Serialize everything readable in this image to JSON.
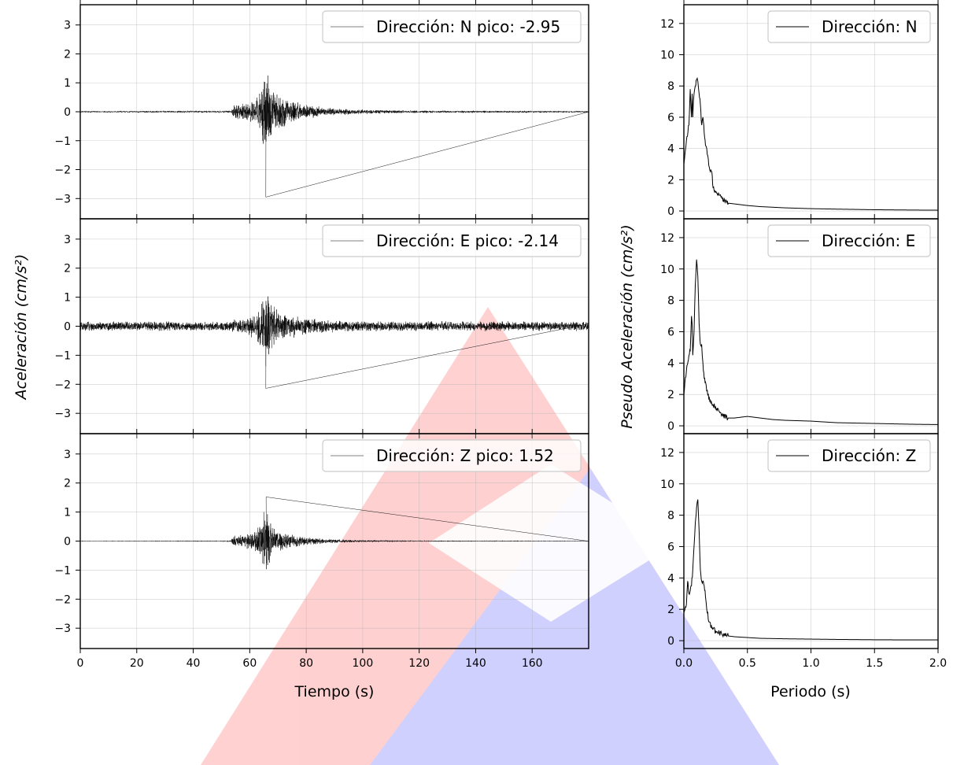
{
  "chart_data": [
    {
      "type": "line",
      "panel": "N",
      "xlabel": "Tiempo (s)",
      "ylabel": "Aceleración (cm/s²)",
      "xlim": [
        0,
        180
      ],
      "ylim": [
        -3.7,
        3.7
      ],
      "x_ticks": [
        0,
        20,
        40,
        60,
        80,
        100,
        120,
        140,
        160
      ],
      "y_ticks": [
        -3,
        -2,
        -1,
        0,
        1,
        2,
        3
      ],
      "grid": true,
      "legend_position": "top-right",
      "series": [
        {
          "name": "Dirección: N pico: -2.95",
          "envelope": {
            "t": [
              0,
              50,
              53.5,
              54,
              58,
              62,
              64,
              65,
              65.5,
              66,
              66.5,
              67,
              68,
              70,
              73,
              78,
              85,
              95,
              110,
              130,
              150,
              180
            ],
            "amp": [
              0.03,
              0.04,
              0.05,
              0.25,
              0.3,
              0.45,
              0.9,
              1.3,
              2.3,
              1.6,
              1.5,
              1.2,
              0.9,
              0.7,
              0.5,
              0.3,
              0.18,
              0.1,
              0.06,
              0.04,
              0.04,
              0.03
            ]
          },
          "peak": {
            "t": 65.7,
            "value": -2.95
          }
        }
      ]
    },
    {
      "type": "line",
      "panel": "E",
      "xlim": [
        0,
        180
      ],
      "ylim": [
        -3.7,
        3.7
      ],
      "y_ticks": [
        -3,
        -2,
        -1,
        0,
        1,
        2,
        3
      ],
      "grid": true,
      "legend_position": "top-right",
      "series": [
        {
          "name": "Dirección: E pico: -2.14",
          "envelope": {
            "t": [
              0,
              50,
              53.5,
              54,
              58,
              62,
              64,
              65,
              65.5,
              66,
              66.5,
              67,
              68,
              70,
              73,
              78,
              85,
              95,
              110,
              130,
              150,
              180
            ],
            "amp": [
              0.17,
              0.18,
              0.18,
              0.25,
              0.3,
              0.45,
              0.9,
              1.3,
              1.75,
              1.5,
              1.3,
              1.0,
              0.8,
              0.6,
              0.45,
              0.35,
              0.25,
              0.2,
              0.18,
              0.18,
              0.18,
              0.17
            ]
          },
          "peak": {
            "t": 65.7,
            "value": -2.14
          }
        }
      ]
    },
    {
      "type": "line",
      "panel": "Z",
      "xlim": [
        0,
        180
      ],
      "ylim": [
        -3.7,
        3.7
      ],
      "y_ticks": [
        -3,
        -2,
        -1,
        0,
        1,
        2,
        3
      ],
      "grid": true,
      "legend_position": "top-right",
      "series": [
        {
          "name": "Dirección: Z pico: 1.52",
          "envelope": {
            "t": [
              0,
              50,
              53.5,
              54,
              58,
              62,
              64,
              65,
              65.5,
              66,
              66.5,
              67,
              68,
              70,
              73,
              78,
              85,
              95,
              110,
              130,
              150,
              180
            ],
            "amp": [
              0.01,
              0.02,
              0.04,
              0.2,
              0.25,
              0.4,
              0.7,
              1.2,
              1.52,
              1.3,
              1.1,
              0.9,
              0.6,
              0.4,
              0.3,
              0.18,
              0.1,
              0.05,
              0.03,
              0.02,
              0.02,
              0.01
            ]
          },
          "peak": {
            "t": 65.8,
            "value": 1.52
          }
        }
      ]
    },
    {
      "type": "line",
      "panel": "N spectrum",
      "xlabel": "Periodo (s)",
      "ylabel": "Pseudo Aceleración (cm/s²)",
      "xlim": [
        0,
        2
      ],
      "ylim": [
        -0.5,
        13.2
      ],
      "x_ticks": [
        0.0,
        0.5,
        1.0,
        1.5,
        2.0
      ],
      "x_tick_labels": [
        "0.0",
        "0.5",
        "1.0",
        "1.5",
        "2.0"
      ],
      "y_ticks": [
        0,
        2,
        4,
        6,
        8,
        10,
        12
      ],
      "grid": true,
      "legend_position": "top-right",
      "series": [
        {
          "name": "Dirección: N",
          "x": [
            0.0,
            0.02,
            0.04,
            0.05,
            0.06,
            0.065,
            0.07,
            0.075,
            0.08,
            0.09,
            0.1,
            0.11,
            0.12,
            0.13,
            0.14,
            0.15,
            0.16,
            0.17,
            0.18,
            0.2,
            0.22,
            0.23,
            0.25,
            0.28,
            0.3,
            0.35,
            0.4,
            0.45,
            0.5,
            0.6,
            0.8,
            1.0,
            1.2,
            1.5,
            1.8,
            2.0
          ],
          "y": [
            3.0,
            4.5,
            5.5,
            7.8,
            6.0,
            7.5,
            6.0,
            7.0,
            7.5,
            8.0,
            8.4,
            8.3,
            7.5,
            6.8,
            5.5,
            6.0,
            5.0,
            4.2,
            4.0,
            2.8,
            2.5,
            1.5,
            1.2,
            1.0,
            0.8,
            0.5,
            0.45,
            0.4,
            0.35,
            0.28,
            0.2,
            0.15,
            0.12,
            0.08,
            0.06,
            0.05
          ]
        }
      ]
    },
    {
      "type": "line",
      "panel": "E spectrum",
      "xlim": [
        0,
        2
      ],
      "ylim": [
        -0.5,
        13.2
      ],
      "y_ticks": [
        0,
        2,
        4,
        6,
        8,
        10,
        12
      ],
      "grid": true,
      "legend_position": "top-right",
      "series": [
        {
          "name": "Dirección: E",
          "x": [
            0.0,
            0.02,
            0.04,
            0.05,
            0.06,
            0.065,
            0.07,
            0.08,
            0.09,
            0.1,
            0.11,
            0.12,
            0.13,
            0.14,
            0.15,
            0.16,
            0.17,
            0.18,
            0.2,
            0.22,
            0.25,
            0.28,
            0.3,
            0.35,
            0.4,
            0.5,
            0.55,
            0.6,
            0.7,
            0.8,
            1.0,
            1.2,
            1.5,
            1.8,
            2.0
          ],
          "y": [
            2.0,
            3.5,
            4.5,
            4.8,
            7.0,
            6.5,
            4.5,
            6.0,
            9.0,
            10.6,
            9.5,
            6.5,
            5.2,
            5.2,
            4.0,
            3.0,
            2.8,
            2.2,
            1.8,
            1.4,
            1.2,
            0.9,
            0.7,
            0.5,
            0.5,
            0.6,
            0.55,
            0.5,
            0.4,
            0.35,
            0.3,
            0.2,
            0.15,
            0.1,
            0.08
          ]
        }
      ]
    },
    {
      "type": "line",
      "panel": "Z spectrum",
      "xlim": [
        0,
        2
      ],
      "ylim": [
        -0.5,
        13.2
      ],
      "y_ticks": [
        0,
        2,
        4,
        6,
        8,
        10,
        12
      ],
      "grid": true,
      "legend_position": "top-right",
      "series": [
        {
          "name": "Dirección: Z",
          "x": [
            0.0,
            0.02,
            0.03,
            0.04,
            0.05,
            0.06,
            0.07,
            0.08,
            0.09,
            0.1,
            0.11,
            0.12,
            0.13,
            0.14,
            0.15,
            0.16,
            0.17,
            0.18,
            0.2,
            0.22,
            0.25,
            0.3,
            0.35,
            0.4,
            0.5,
            0.6,
            0.8,
            1.0,
            1.2,
            1.5,
            1.8,
            2.0
          ],
          "y": [
            1.8,
            2.3,
            3.8,
            3.0,
            3.2,
            3.5,
            4.5,
            6.0,
            7.5,
            8.5,
            9.0,
            7.0,
            4.5,
            3.8,
            3.8,
            3.5,
            2.8,
            2.0,
            1.2,
            0.8,
            0.6,
            0.4,
            0.3,
            0.25,
            0.2,
            0.15,
            0.12,
            0.1,
            0.08,
            0.06,
            0.05,
            0.05
          ]
        }
      ]
    }
  ]
}
